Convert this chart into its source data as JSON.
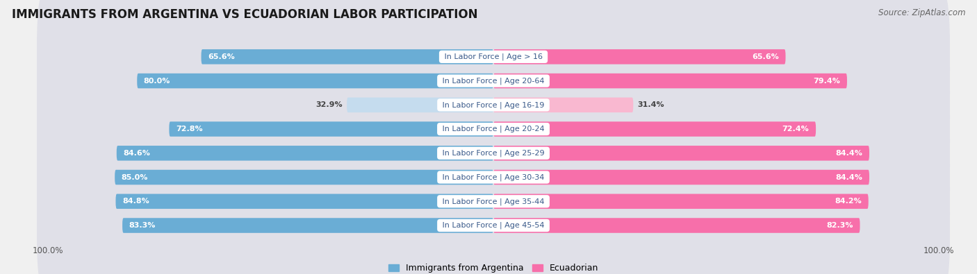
{
  "title": "IMMIGRANTS FROM ARGENTINA VS ECUADORIAN LABOR PARTICIPATION",
  "source": "Source: ZipAtlas.com",
  "categories": [
    "In Labor Force | Age > 16",
    "In Labor Force | Age 20-64",
    "In Labor Force | Age 16-19",
    "In Labor Force | Age 20-24",
    "In Labor Force | Age 25-29",
    "In Labor Force | Age 30-34",
    "In Labor Force | Age 35-44",
    "In Labor Force | Age 45-54"
  ],
  "argentina_values": [
    65.6,
    80.0,
    32.9,
    72.8,
    84.6,
    85.0,
    84.8,
    83.3
  ],
  "ecuador_values": [
    65.6,
    79.4,
    31.4,
    72.4,
    84.4,
    84.4,
    84.2,
    82.3
  ],
  "argentina_color": "#6aadd5",
  "ecuador_color": "#f76faa",
  "argentina_light_color": "#c5dcee",
  "ecuador_light_color": "#f9b8d0",
  "label_argentina": "Immigrants from Argentina",
  "label_ecuador": "Ecuadorian",
  "background_color": "#f0f0f0",
  "bar_height": 0.62,
  "max_value": 100.0,
  "title_fontsize": 12,
  "source_fontsize": 8.5,
  "bar_label_fontsize": 8,
  "category_fontsize": 8,
  "legend_fontsize": 9,
  "low_threshold": 50
}
